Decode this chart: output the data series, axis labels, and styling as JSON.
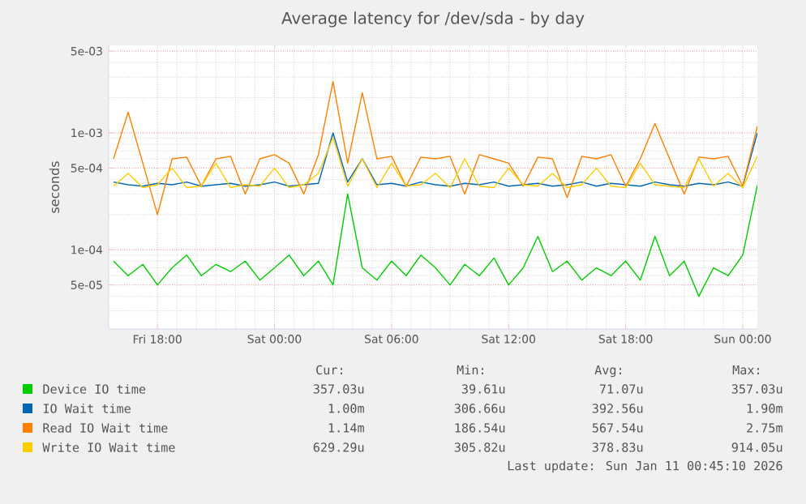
{
  "chart_data": {
    "type": "line",
    "title": "Average latency for /dev/sda - by day",
    "ylabel": "seconds",
    "log": true,
    "grid": true,
    "legend": "bottom",
    "marker": "none",
    "line_style": "solid",
    "xlim": [
      "2026-01-09T15:30",
      "2026-01-11T00:45"
    ],
    "ylim": [
      2.1e-05,
      0.0056
    ],
    "xticks": [
      {
        "value": "2026-01-09T18:00",
        "label": "Fri 18:00"
      },
      {
        "value": "2026-01-10T00:00",
        "label": "Sat 00:00"
      },
      {
        "value": "2026-01-10T06:00",
        "label": "Sat 06:00"
      },
      {
        "value": "2026-01-10T12:00",
        "label": "Sat 12:00"
      },
      {
        "value": "2026-01-10T18:00",
        "label": "Sat 18:00"
      },
      {
        "value": "2026-01-11T00:00",
        "label": "Sun 00:00"
      }
    ],
    "yticks": [
      {
        "value": 5e-05,
        "label": "5e-05"
      },
      {
        "value": 0.0001,
        "label": "1e-04"
      },
      {
        "value": 0.0005,
        "label": "5e-04"
      },
      {
        "value": 0.001,
        "label": "1e-03"
      },
      {
        "value": 0.005,
        "label": "5e-03"
      }
    ],
    "x": [
      "2026-01-09T15:45",
      "2026-01-09T16:30",
      "2026-01-09T17:15",
      "2026-01-09T18:00",
      "2026-01-09T18:45",
      "2026-01-09T19:30",
      "2026-01-09T20:15",
      "2026-01-09T21:00",
      "2026-01-09T21:45",
      "2026-01-09T22:30",
      "2026-01-09T23:15",
      "2026-01-10T00:00",
      "2026-01-10T00:45",
      "2026-01-10T01:30",
      "2026-01-10T02:15",
      "2026-01-10T03:00",
      "2026-01-10T03:45",
      "2026-01-10T04:30",
      "2026-01-10T05:15",
      "2026-01-10T06:00",
      "2026-01-10T06:45",
      "2026-01-10T07:30",
      "2026-01-10T08:15",
      "2026-01-10T09:00",
      "2026-01-10T09:45",
      "2026-01-10T10:30",
      "2026-01-10T11:15",
      "2026-01-10T12:00",
      "2026-01-10T12:45",
      "2026-01-10T13:30",
      "2026-01-10T14:15",
      "2026-01-10T15:00",
      "2026-01-10T15:45",
      "2026-01-10T16:30",
      "2026-01-10T17:15",
      "2026-01-10T18:00",
      "2026-01-10T18:45",
      "2026-01-10T19:30",
      "2026-01-10T20:15",
      "2026-01-10T21:00",
      "2026-01-10T21:45",
      "2026-01-10T22:30",
      "2026-01-10T23:15",
      "2026-01-11T00:00",
      "2026-01-11T00:45"
    ],
    "series": [
      {
        "name": "Device IO time",
        "color": "#00cc00",
        "values": [
          8e-05,
          6e-05,
          7.5e-05,
          5e-05,
          7e-05,
          9e-05,
          6e-05,
          7.5e-05,
          6.5e-05,
          8e-05,
          5.5e-05,
          7e-05,
          9e-05,
          6e-05,
          8e-05,
          5e-05,
          0.0003,
          7e-05,
          5.5e-05,
          8e-05,
          6e-05,
          9e-05,
          7e-05,
          5e-05,
          7.5e-05,
          6e-05,
          8.5e-05,
          5e-05,
          7e-05,
          0.00013,
          6.5e-05,
          8e-05,
          5.5e-05,
          7e-05,
          6e-05,
          8e-05,
          5.5e-05,
          0.00013,
          6e-05,
          8e-05,
          4e-05,
          7e-05,
          6e-05,
          9e-05,
          0.000357
        ]
      },
      {
        "name": "IO Wait time",
        "color": "#0066b3",
        "values": [
          0.00038,
          0.00036,
          0.00035,
          0.00037,
          0.00036,
          0.00038,
          0.00035,
          0.00036,
          0.00037,
          0.00035,
          0.00036,
          0.00038,
          0.00035,
          0.00036,
          0.00037,
          0.001,
          0.00038,
          0.0006,
          0.00036,
          0.00037,
          0.00035,
          0.00038,
          0.00036,
          0.00035,
          0.00037,
          0.00036,
          0.00038,
          0.00035,
          0.00036,
          0.00037,
          0.00035,
          0.00036,
          0.00038,
          0.00035,
          0.00037,
          0.00036,
          0.00035,
          0.00038,
          0.00036,
          0.00035,
          0.00037,
          0.00036,
          0.00038,
          0.00035,
          0.001
        ]
      },
      {
        "name": "Read IO Wait time",
        "color": "#ff8000",
        "values": [
          0.0006,
          0.0015,
          0.00055,
          0.0002,
          0.0006,
          0.00062,
          0.00035,
          0.0006,
          0.00063,
          0.0003,
          0.0006,
          0.00065,
          0.00055,
          0.0003,
          0.00065,
          0.00275,
          0.00055,
          0.0022,
          0.0006,
          0.00063,
          0.00035,
          0.00062,
          0.0006,
          0.00063,
          0.0003,
          0.00065,
          0.0006,
          0.00055,
          0.00035,
          0.00062,
          0.0006,
          0.00028,
          0.00063,
          0.0006,
          0.00065,
          0.00035,
          0.0006,
          0.0012,
          0.0006,
          0.0003,
          0.00062,
          0.0006,
          0.00063,
          0.00035,
          0.00114
        ]
      },
      {
        "name": "Write IO Wait time",
        "color": "#ffcc00",
        "values": [
          0.00035,
          0.00045,
          0.00034,
          0.00036,
          0.0005,
          0.00034,
          0.00035,
          0.00055,
          0.00034,
          0.00036,
          0.00035,
          0.0005,
          0.00034,
          0.00036,
          0.00045,
          0.00091,
          0.00035,
          0.0006,
          0.00034,
          0.00055,
          0.00035,
          0.00036,
          0.00045,
          0.00034,
          0.0006,
          0.00035,
          0.00034,
          0.0005,
          0.00036,
          0.00035,
          0.00045,
          0.00034,
          0.00036,
          0.0005,
          0.00035,
          0.00034,
          0.00055,
          0.00036,
          0.00035,
          0.00034,
          0.0006,
          0.00035,
          0.00045,
          0.00034,
          0.00063
        ]
      }
    ],
    "annotations": [
      "Cur:",
      "Min:",
      "Avg:",
      "Max:",
      "357.03u",
      "39.61u",
      "71.07u",
      "357.03u",
      "1.00m",
      "306.66u",
      "392.56u",
      "1.90m",
      "1.14m",
      "186.54u",
      "567.54u",
      "2.75m",
      "629.29u",
      "305.82u",
      "378.83u",
      "914.05u",
      "Last update: Sun Jan 11 00:45:10 2026"
    ]
  }
}
